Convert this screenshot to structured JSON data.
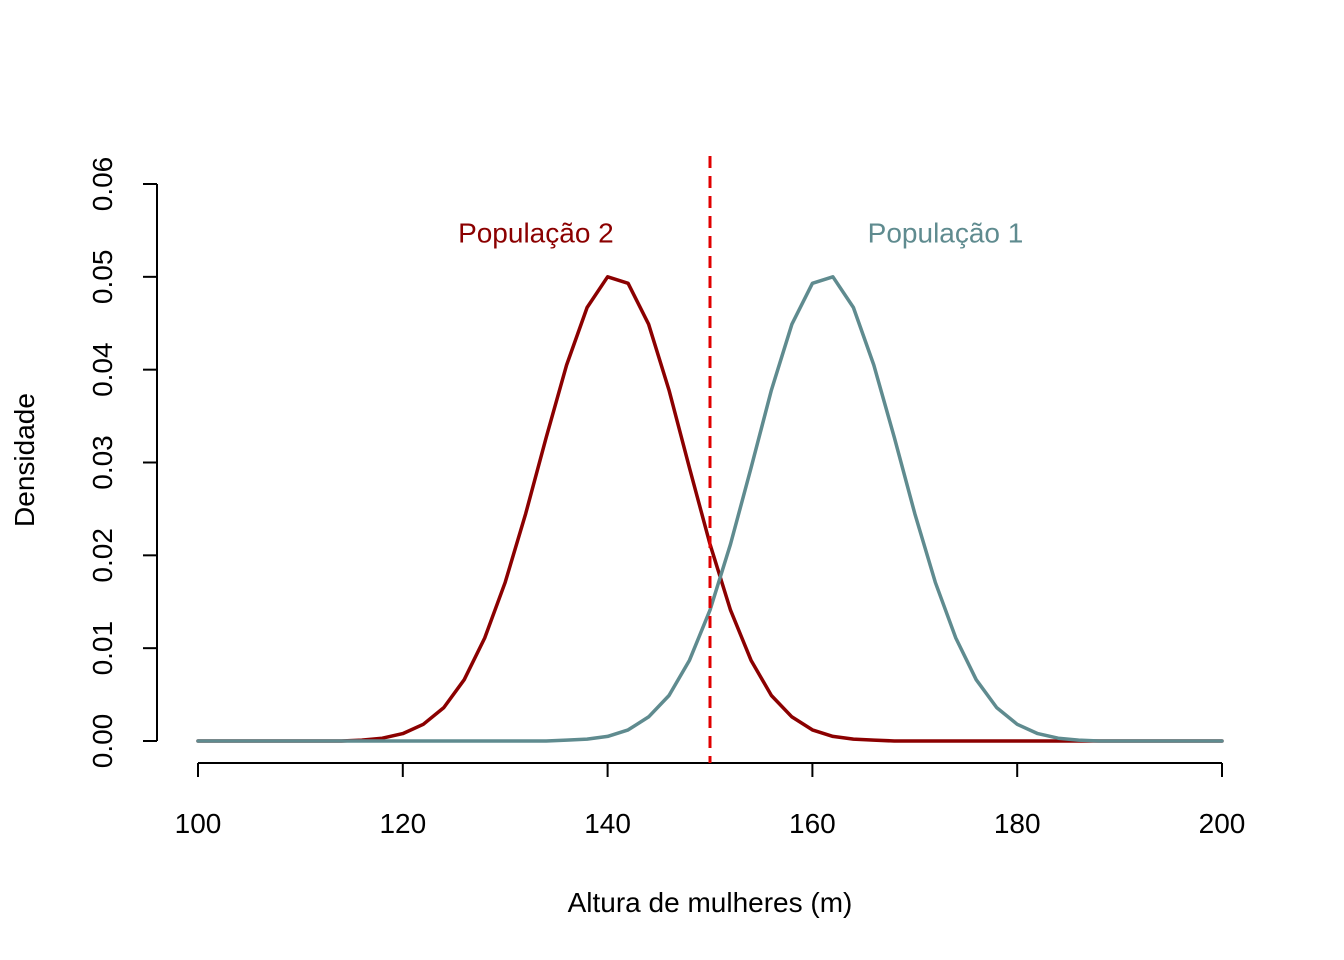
{
  "chart_data": {
    "type": "line",
    "xlabel": "Altura de mulheres (m)",
    "ylabel": "Densidade",
    "xlim": [
      100,
      200
    ],
    "ylim": [
      0,
      0.06
    ],
    "x_ticks": [
      "100",
      "120",
      "140",
      "160",
      "180",
      "200"
    ],
    "y_ticks": [
      "0.00",
      "0.01",
      "0.02",
      "0.03",
      "0.04",
      "0.05",
      "0.06"
    ],
    "grid": false,
    "series": [
      {
        "name": "População 2",
        "color": "#8B0000",
        "x": [
          100,
          102,
          104,
          106,
          108,
          110,
          112,
          114,
          116,
          118,
          120,
          122,
          124,
          126,
          128,
          130,
          132,
          134,
          136,
          138,
          140,
          142,
          144,
          146,
          148,
          150,
          152,
          154,
          156,
          158,
          160,
          162,
          164,
          166,
          168,
          170,
          172,
          174,
          176,
          178,
          180,
          182,
          184,
          186,
          188,
          190,
          192,
          194,
          196,
          198,
          200
        ],
        "values": [
          0.0,
          0.0,
          0.0,
          0.0,
          0.0,
          0.0,
          0.0,
          0.0,
          0.0001,
          0.0003,
          0.0008,
          0.0018,
          0.0036,
          0.0066,
          0.0111,
          0.0171,
          0.0245,
          0.0327,
          0.0405,
          0.0467,
          0.05,
          0.0493,
          0.0449,
          0.0378,
          0.0294,
          0.0212,
          0.0141,
          0.0087,
          0.0049,
          0.0026,
          0.0012,
          0.0005,
          0.0002,
          0.0001,
          0.0,
          0.0,
          0.0,
          0.0,
          0.0,
          0.0,
          0.0,
          0.0,
          0.0,
          0.0,
          0.0,
          0.0,
          0.0,
          0.0,
          0.0,
          0.0,
          0.0
        ]
      },
      {
        "name": "População 1",
        "color": "#5F8B8F",
        "x": [
          100,
          102,
          104,
          106,
          108,
          110,
          112,
          114,
          116,
          118,
          120,
          122,
          124,
          126,
          128,
          130,
          132,
          134,
          136,
          138,
          140,
          142,
          144,
          146,
          148,
          150,
          152,
          154,
          156,
          158,
          160,
          162,
          164,
          166,
          168,
          170,
          172,
          174,
          176,
          178,
          180,
          182,
          184,
          186,
          188,
          190,
          192,
          194,
          196,
          198,
          200
        ],
        "values": [
          0.0,
          0.0,
          0.0,
          0.0,
          0.0,
          0.0,
          0.0,
          0.0,
          0.0,
          0.0,
          0.0,
          0.0,
          0.0,
          0.0,
          0.0,
          0.0,
          0.0,
          0.0,
          0.0001,
          0.0002,
          0.0005,
          0.0012,
          0.0026,
          0.0049,
          0.0087,
          0.0141,
          0.0212,
          0.0294,
          0.0378,
          0.0449,
          0.0493,
          0.05,
          0.0467,
          0.0405,
          0.0327,
          0.0245,
          0.0171,
          0.0111,
          0.0066,
          0.0036,
          0.0018,
          0.0008,
          0.0003,
          0.0001,
          0.0,
          0.0,
          0.0,
          0.0,
          0.0,
          0.0,
          0.0
        ]
      }
    ],
    "reference_line": {
      "x": 150,
      "color": "#E00000",
      "style": "dashed"
    },
    "annotations": [
      {
        "text": "População 2",
        "color": "#8B0000",
        "x": 133,
        "y": 0.055
      },
      {
        "text": "População 1",
        "color": "#5F8B8F",
        "x": 173,
        "y": 0.055
      }
    ]
  }
}
